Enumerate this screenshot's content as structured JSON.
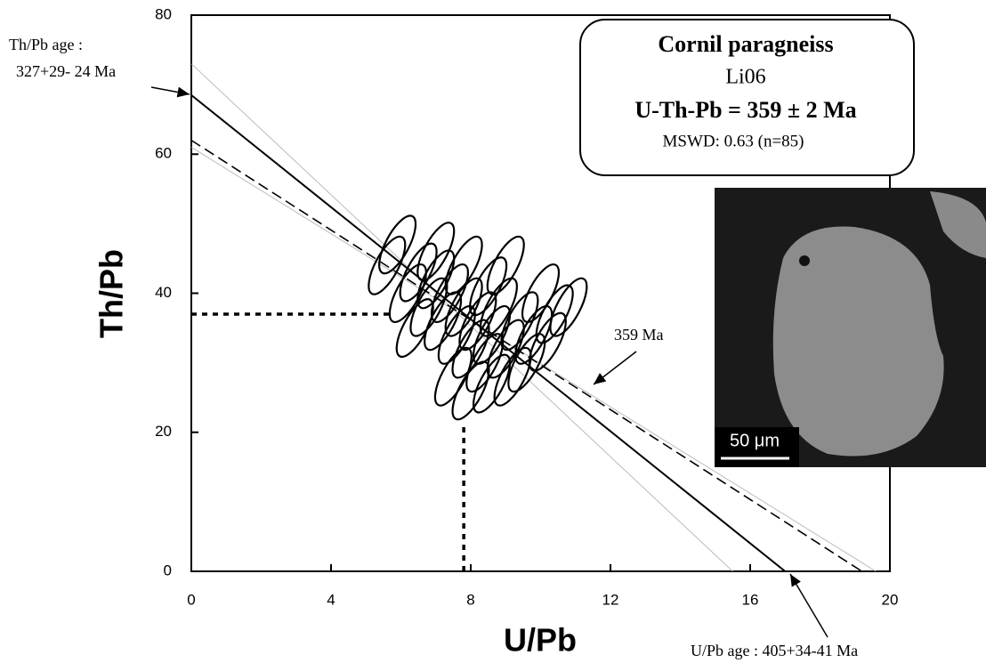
{
  "chart_data": {
    "type": "scatter",
    "x_label": "U/Pb",
    "y_label": "Th/Pb",
    "xlim": [
      0,
      20
    ],
    "xticks": [
      0,
      4,
      8,
      12,
      16,
      20
    ],
    "ylim": [
      0,
      80
    ],
    "yticks": [
      0,
      20,
      40,
      60,
      80
    ],
    "points": {
      "x": [
        5.6,
        5.9,
        6.2,
        6.5,
        6.8,
        7.0,
        7.2,
        7.4,
        7.6,
        7.8,
        8.0,
        8.2,
        8.4,
        8.6,
        8.8,
        9.0,
        9.2,
        9.4,
        9.6,
        9.8,
        10.0,
        10.2,
        10.4,
        10.8,
        7.5,
        8.0,
        8.5,
        7.0,
        6.4,
        9.0,
        7.8,
        8.6
      ],
      "y": [
        44,
        47,
        40,
        43,
        38,
        42,
        36,
        40,
        34,
        38,
        32,
        36,
        30,
        34,
        38,
        32,
        28,
        36,
        30,
        34,
        40,
        33,
        37,
        38,
        28,
        26,
        41,
        46,
        35,
        44,
        44,
        27
      ],
      "color": "#000000"
    },
    "lines": [
      {
        "style": "faint",
        "x": [
          0,
          15.5
        ],
        "y": [
          73,
          0
        ]
      },
      {
        "style": "faint",
        "x": [
          0,
          19.6
        ],
        "y": [
          61,
          0
        ]
      },
      {
        "style": "solid",
        "x": [
          0,
          17
        ],
        "y": [
          68.5,
          0
        ]
      },
      {
        "style": "dashed",
        "x": [
          0,
          19.2
        ],
        "y": [
          62,
          0
        ]
      },
      {
        "style": "dotted",
        "x": [
          0,
          5.7
        ],
        "y": [
          37,
          37
        ]
      },
      {
        "style": "dotted",
        "x": [
          7.8,
          7.8
        ],
        "y": [
          0,
          21
        ]
      }
    ],
    "annotations": {
      "thpb_age_title": "Th/Pb age :",
      "thpb_age_value": "327+29- 24 Ma",
      "age_line": "359 Ma",
      "upb_age": "U/Pb age : 405+34-41 Ma"
    },
    "legend_box": {
      "title": "Cornil paragneiss",
      "sample": "Li06",
      "age": "U-Th-Pb = 359 ± 2 Ma",
      "mswd": "MSWD: 0.63 (n=85)"
    },
    "image": {
      "scale_bar": "50 μm"
    }
  }
}
